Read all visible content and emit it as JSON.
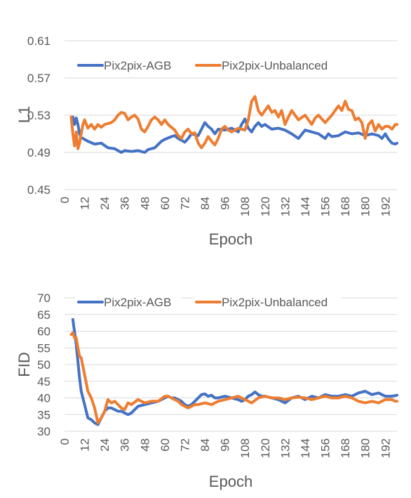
{
  "colors": {
    "agb": "#4472c4",
    "unbalanced": "#ed7d31"
  },
  "chart_data": [
    {
      "type": "line",
      "xlabel": "Epoch",
      "ylabel": "L1",
      "xlim": [
        0,
        199
      ],
      "ylim": [
        0.45,
        0.61
      ],
      "yticks": [
        "0.61",
        "0.57",
        "0.53",
        "0.49",
        "0.45"
      ],
      "xticks": [
        "0",
        "12",
        "24",
        "36",
        "48",
        "60",
        "72",
        "84",
        "96",
        "108",
        "120",
        "132",
        "144",
        "156",
        "168",
        "180",
        "192"
      ],
      "grid": true,
      "legend_position": "top",
      "series": [
        {
          "name": "Pix2pix-AGB",
          "color": "#4472c4",
          "x": [
            5,
            6,
            7,
            8,
            9,
            10,
            12,
            14,
            18,
            22,
            26,
            30,
            34,
            36,
            40,
            44,
            48,
            50,
            54,
            58,
            60,
            64,
            66,
            68,
            72,
            74,
            76,
            80,
            82,
            84,
            86,
            88,
            90,
            92,
            96,
            100,
            104,
            106,
            108,
            110,
            112,
            114,
            116,
            118,
            120,
            124,
            128,
            132,
            136,
            140,
            144,
            148,
            152,
            156,
            158,
            160,
            164,
            168,
            172,
            176,
            180,
            184,
            188,
            190,
            192,
            194,
            196,
            198,
            199
          ],
          "y": [
            0.528,
            0.52,
            0.527,
            0.52,
            0.51,
            0.506,
            0.504,
            0.502,
            0.499,
            0.5,
            0.495,
            0.494,
            0.49,
            0.492,
            0.491,
            0.492,
            0.49,
            0.493,
            0.495,
            0.502,
            0.504,
            0.507,
            0.508,
            0.505,
            0.501,
            0.505,
            0.51,
            0.508,
            0.515,
            0.522,
            0.518,
            0.515,
            0.51,
            0.515,
            0.514,
            0.516,
            0.512,
            0.52,
            0.526,
            0.516,
            0.512,
            0.518,
            0.522,
            0.518,
            0.52,
            0.515,
            0.516,
            0.514,
            0.51,
            0.505,
            0.514,
            0.512,
            0.51,
            0.505,
            0.51,
            0.507,
            0.508,
            0.512,
            0.51,
            0.511,
            0.508,
            0.51,
            0.508,
            0.505,
            0.51,
            0.504,
            0.5,
            0.499,
            0.5
          ]
        },
        {
          "name": "Pix2pix-Unbalanced",
          "color": "#ed7d31",
          "x": [
            4,
            5,
            6,
            7,
            8,
            9,
            10,
            11,
            12,
            14,
            16,
            18,
            20,
            22,
            24,
            28,
            30,
            32,
            34,
            36,
            38,
            40,
            42,
            44,
            46,
            48,
            50,
            52,
            54,
            56,
            58,
            60,
            62,
            64,
            66,
            68,
            70,
            72,
            74,
            76,
            78,
            80,
            82,
            84,
            86,
            88,
            90,
            92,
            94,
            96,
            98,
            100,
            104,
            108,
            110,
            112,
            114,
            116,
            118,
            120,
            122,
            124,
            126,
            128,
            130,
            132,
            134,
            136,
            140,
            144,
            148,
            150,
            152,
            156,
            160,
            164,
            166,
            168,
            170,
            172,
            174,
            176,
            178,
            180,
            182,
            184,
            186,
            188,
            190,
            192,
            194,
            196,
            198,
            199
          ],
          "y": [
            0.528,
            0.51,
            0.497,
            0.512,
            0.494,
            0.5,
            0.51,
            0.52,
            0.525,
            0.516,
            0.52,
            0.515,
            0.52,
            0.517,
            0.52,
            0.522,
            0.525,
            0.53,
            0.533,
            0.532,
            0.525,
            0.528,
            0.53,
            0.526,
            0.515,
            0.512,
            0.518,
            0.525,
            0.528,
            0.525,
            0.52,
            0.525,
            0.52,
            0.517,
            0.514,
            0.508,
            0.505,
            0.512,
            0.515,
            0.51,
            0.511,
            0.5,
            0.495,
            0.5,
            0.507,
            0.502,
            0.498,
            0.505,
            0.515,
            0.518,
            0.514,
            0.512,
            0.516,
            0.514,
            0.525,
            0.545,
            0.55,
            0.535,
            0.53,
            0.535,
            0.54,
            0.533,
            0.535,
            0.528,
            0.535,
            0.52,
            0.528,
            0.535,
            0.525,
            0.53,
            0.52,
            0.527,
            0.53,
            0.522,
            0.53,
            0.54,
            0.535,
            0.545,
            0.536,
            0.535,
            0.525,
            0.527,
            0.522,
            0.505,
            0.52,
            0.524,
            0.513,
            0.52,
            0.515,
            0.518,
            0.518,
            0.515,
            0.52,
            0.52
          ]
        }
      ]
    },
    {
      "type": "line",
      "xlabel": "Epoch",
      "ylabel": "FID",
      "xlim": [
        0,
        199
      ],
      "ylim": [
        30,
        70
      ],
      "yticks": [
        "70",
        "65",
        "60",
        "55",
        "50",
        "45",
        "40",
        "35",
        "30"
      ],
      "xticks": [
        "0",
        "12",
        "24",
        "36",
        "48",
        "60",
        "72",
        "84",
        "96",
        "108",
        "120",
        "132",
        "144",
        "156",
        "168",
        "180",
        "192"
      ],
      "grid": true,
      "legend_position": "top",
      "series": [
        {
          "name": "Pix2pix-AGB",
          "color": "#4472c4",
          "x": [
            5,
            7,
            9,
            10,
            12,
            14,
            16,
            18,
            20,
            22,
            24,
            26,
            28,
            30,
            32,
            34,
            36,
            38,
            40,
            44,
            48,
            52,
            56,
            60,
            62,
            64,
            66,
            68,
            70,
            72,
            74,
            76,
            78,
            80,
            82,
            84,
            86,
            88,
            90,
            92,
            96,
            100,
            104,
            106,
            108,
            110,
            112,
            114,
            116,
            118,
            120,
            124,
            128,
            132,
            136,
            140,
            144,
            148,
            152,
            156,
            160,
            164,
            168,
            172,
            176,
            180,
            184,
            188,
            192,
            196,
            199
          ],
          "y": [
            63.5,
            56,
            46,
            42,
            38,
            34,
            33.5,
            32.5,
            32,
            34,
            36,
            37,
            37,
            36.5,
            36,
            36,
            35.5,
            35,
            35.5,
            37.5,
            38,
            38.5,
            39,
            40,
            40.5,
            40,
            40,
            39.5,
            39,
            38,
            37.5,
            38,
            39,
            40,
            41,
            41.2,
            40.5,
            40.8,
            40,
            40,
            40.5,
            40,
            39.5,
            39,
            39.5,
            40.5,
            41,
            41.8,
            41,
            40.5,
            40.5,
            40,
            39.5,
            38.5,
            40,
            40.5,
            39.5,
            40.5,
            40,
            41,
            40.5,
            40.5,
            41,
            40.5,
            41.5,
            42,
            41,
            41.5,
            40.5,
            40.5,
            40.8
          ]
        },
        {
          "name": "Pix2pix-Unbalanced",
          "color": "#ed7d31",
          "x": [
            4,
            5,
            6,
            7,
            8,
            9,
            10,
            12,
            14,
            16,
            18,
            20,
            22,
            24,
            26,
            28,
            30,
            32,
            34,
            36,
            38,
            40,
            44,
            48,
            52,
            56,
            60,
            62,
            64,
            66,
            68,
            70,
            72,
            74,
            76,
            78,
            80,
            84,
            88,
            92,
            96,
            100,
            104,
            108,
            112,
            116,
            120,
            124,
            128,
            132,
            136,
            140,
            144,
            148,
            152,
            156,
            160,
            164,
            168,
            172,
            176,
            180,
            184,
            188,
            192,
            196,
            198,
            199
          ],
          "y": [
            59,
            59.5,
            58,
            58,
            55,
            52.5,
            52,
            47,
            42,
            40,
            37,
            32.5,
            34,
            36,
            39.5,
            38.5,
            39,
            38,
            37,
            36.5,
            38.5,
            38,
            39.5,
            38.5,
            39,
            39,
            40.5,
            40.5,
            40,
            39.5,
            39,
            38,
            37.5,
            37,
            37.5,
            38,
            38,
            38.5,
            38,
            39,
            39.5,
            40,
            40.5,
            39.5,
            38.5,
            40,
            40.5,
            40,
            40,
            39.5,
            40,
            40.2,
            40,
            39.5,
            40,
            40.5,
            40,
            40,
            40.5,
            40,
            39,
            38.5,
            39,
            38.5,
            39.5,
            39.5,
            39,
            39
          ]
        }
      ]
    }
  ]
}
